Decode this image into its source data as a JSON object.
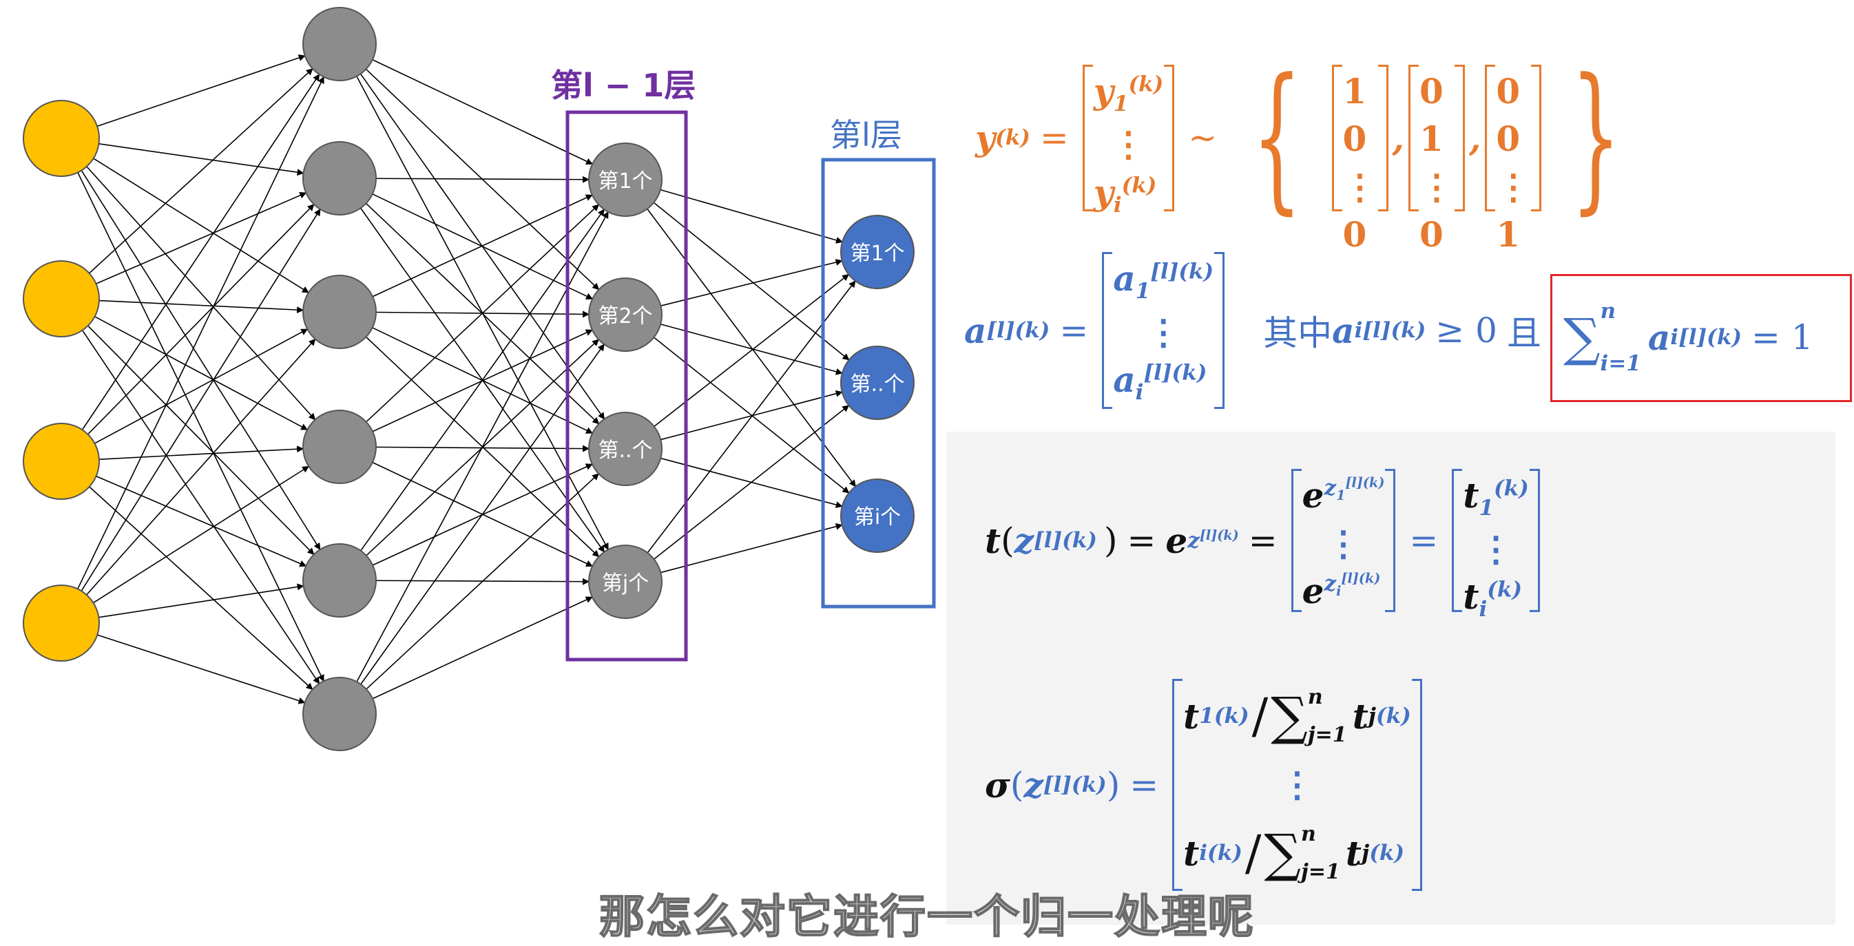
{
  "colors": {
    "input": "#ffc000",
    "hidden": "#8c8c8c",
    "output": "#4472c4",
    "layer_prev_box": "#7030a0",
    "layer_box": "#4472c4",
    "highlight_box": "#e0262b",
    "orange": "#e77a2d",
    "blue": "#4472c4"
  },
  "network": {
    "layer_sizes": [
      4,
      6,
      4,
      3
    ],
    "layer_prev_label": "第l − 1层",
    "layer_label": "第l层",
    "layer_prev_nodes": [
      "第1个",
      "第2个",
      "第..个",
      "第j个"
    ],
    "layer_nodes": [
      "第1个",
      "第..个",
      "第i个"
    ]
  },
  "formulas": {
    "y_def": {
      "lhs": "y",
      "sup": "(k)",
      "eq": "=",
      "m_top": "y",
      "m_top_sub": "1",
      "m_bot": "y",
      "m_bot_sub": "i",
      "dots": "⋮",
      "sim": "~",
      "lbrace": "{",
      "rbrace": "}",
      "comma": ",",
      "onehots": [
        [
          "1",
          "0",
          "⋮",
          "0"
        ],
        [
          "0",
          "1",
          "⋮",
          "0"
        ],
        [
          "0",
          "0",
          "⋮",
          "1"
        ]
      ]
    },
    "a_def": {
      "lhs": "a",
      "sup": "[l](k)",
      "eq": "=",
      "m_top_sub": "1",
      "m_bot_sub": "i",
      "dots": "⋮",
      "text1": "其中",
      "cond_sub": "i",
      "geq": "≥ 0",
      "text2": "且"
    },
    "constraint": {
      "sum": "∑",
      "sum_upper": "n",
      "sum_lower": "i=1",
      "term": "a",
      "term_sup": "[l](k)",
      "term_sub": "i",
      "eq": "= 1"
    },
    "t_def": {
      "lhs": "t",
      "z": "z",
      "sup": "[l](k)",
      "eq": "=",
      "e": "e",
      "m1_top_sub": "1",
      "m1_bot_sub": "i",
      "dots": "⋮",
      "t": "t",
      "t_sup": "(k)",
      "m2_top_sub": "1",
      "m2_bot_sub": "i"
    },
    "sigma_def": {
      "lhs": "σ",
      "z": "z",
      "sup": "[l](k)",
      "eq": "=",
      "t": "t",
      "t_sup": "(k)",
      "top_sub": "1",
      "bot_sub": "i",
      "slash": "/",
      "sum": "∑",
      "sum_upper": "n",
      "sum_lower": "j=1",
      "den_sub": "j",
      "dots": "⋮"
    }
  },
  "subtitle": "那怎么对它进行一个归一处理呢"
}
